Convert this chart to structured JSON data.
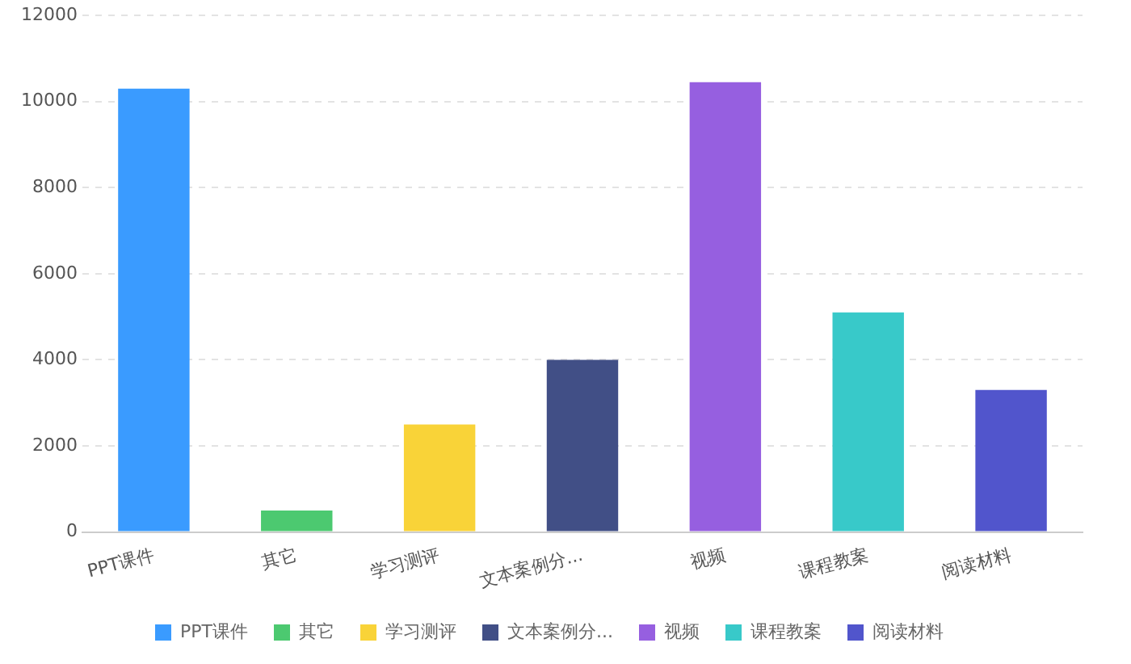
{
  "chart_data": {
    "type": "bar",
    "categories": [
      "PPT课件",
      "其它",
      "学习测评",
      "文本案例分...",
      "视频",
      "课程教案",
      "阅读材料"
    ],
    "series": [
      {
        "name": "PPT课件",
        "color": "#3a9bff",
        "values": [
          10300,
          null,
          null,
          null,
          null,
          null,
          null
        ]
      },
      {
        "name": "其它",
        "color": "#4cc970",
        "values": [
          null,
          500,
          null,
          null,
          null,
          null,
          null
        ]
      },
      {
        "name": "学习测评",
        "color": "#f9d338",
        "values": [
          null,
          null,
          2500,
          null,
          null,
          null,
          null
        ]
      },
      {
        "name": "文本案例分...",
        "color": "#414f86",
        "values": [
          null,
          null,
          null,
          4000,
          null,
          null,
          null
        ]
      },
      {
        "name": "视频",
        "color": "#965fe0",
        "values": [
          null,
          null,
          null,
          null,
          10450,
          null,
          null
        ]
      },
      {
        "name": "课程教案",
        "color": "#38c9c9",
        "values": [
          null,
          null,
          null,
          null,
          null,
          5100,
          null
        ]
      },
      {
        "name": "阅读材料",
        "color": "#5155cc",
        "values": [
          null,
          null,
          null,
          null,
          null,
          null,
          3300
        ]
      }
    ],
    "ylim": [
      0,
      12000
    ],
    "yticks": [
      0,
      2000,
      4000,
      6000,
      8000,
      10000,
      12000
    ],
    "grid": "y",
    "legend": "bottom"
  }
}
